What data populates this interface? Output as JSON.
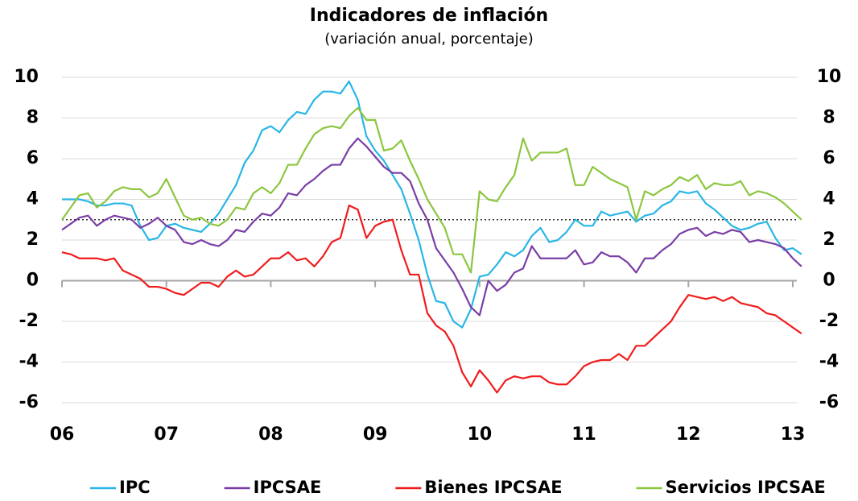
{
  "chart_data": {
    "type": "line",
    "title": "Indicadores de inflación",
    "subtitle": "(variación anual, porcentaje)",
    "categories": [
      "06",
      null,
      null,
      null,
      null,
      null,
      null,
      null,
      null,
      null,
      null,
      null,
      "07",
      null,
      null,
      null,
      null,
      null,
      null,
      null,
      null,
      null,
      null,
      null,
      "08",
      null,
      null,
      null,
      null,
      null,
      null,
      null,
      null,
      null,
      null,
      null,
      "09",
      null,
      null,
      null,
      null,
      null,
      null,
      null,
      null,
      null,
      null,
      null,
      "10",
      null,
      null,
      null,
      null,
      null,
      null,
      null,
      null,
      null,
      null,
      null,
      "11",
      null,
      null,
      null,
      null,
      null,
      null,
      null,
      null,
      null,
      null,
      null,
      "12",
      null,
      null,
      null,
      null,
      null,
      null,
      null,
      null,
      null,
      null,
      null,
      "13",
      null
    ],
    "series": [
      {
        "name": "IPC",
        "color": "#29b6e6",
        "values": [
          4.0,
          4.0,
          4.0,
          3.9,
          3.7,
          3.7,
          3.8,
          3.8,
          3.7,
          2.7,
          2.0,
          2.1,
          2.7,
          2.8,
          2.6,
          2.5,
          2.4,
          2.8,
          3.3,
          4.0,
          4.7,
          5.8,
          6.4,
          7.4,
          7.6,
          7.3,
          7.9,
          8.3,
          8.2,
          8.9,
          9.3,
          9.3,
          9.2,
          9.8,
          8.9,
          7.1,
          6.4,
          5.9,
          5.2,
          4.5,
          3.3,
          2.0,
          0.3,
          -1.0,
          -1.1,
          -2.0,
          -2.3,
          -1.4,
          0.2,
          0.3,
          0.8,
          1.4,
          1.2,
          1.5,
          2.2,
          2.6,
          1.9,
          2.0,
          2.4,
          3.0,
          2.7,
          2.7,
          3.4,
          3.2,
          3.3,
          3.4,
          2.9,
          3.2,
          3.3,
          3.7,
          3.9,
          4.4,
          4.3,
          4.4,
          3.8,
          3.5,
          3.1,
          2.7,
          2.5,
          2.6,
          2.8,
          2.9,
          2.1,
          1.5,
          1.6,
          1.3
        ]
      },
      {
        "name": "IPCSAE",
        "color": "#7a3ea6",
        "values": [
          2.5,
          2.8,
          3.1,
          3.2,
          2.7,
          3.0,
          3.2,
          3.1,
          3.0,
          2.6,
          2.8,
          3.1,
          2.7,
          2.5,
          1.9,
          1.8,
          2.0,
          1.8,
          1.7,
          2.0,
          2.5,
          2.4,
          2.9,
          3.3,
          3.2,
          3.6,
          4.3,
          4.2,
          4.7,
          5.0,
          5.4,
          5.7,
          5.7,
          6.5,
          7.0,
          6.6,
          6.1,
          5.6,
          5.3,
          5.3,
          4.9,
          3.8,
          3.0,
          1.6,
          1.0,
          0.4,
          -0.4,
          -1.3,
          -1.7,
          0.0,
          -0.5,
          -0.2,
          0.4,
          0.6,
          1.7,
          1.1,
          1.1,
          1.1,
          1.1,
          1.5,
          0.8,
          0.9,
          1.4,
          1.2,
          1.2,
          0.9,
          0.4,
          1.1,
          1.1,
          1.5,
          1.8,
          2.3,
          2.5,
          2.6,
          2.2,
          2.4,
          2.3,
          2.5,
          2.4,
          1.9,
          2.0,
          1.9,
          1.8,
          1.6,
          1.1,
          0.7
        ]
      },
      {
        "name": "Bienes IPCSAE",
        "color": "#f01c1c",
        "values": [
          1.4,
          1.3,
          1.1,
          1.1,
          1.1,
          1.0,
          1.1,
          0.5,
          0.3,
          0.1,
          -0.3,
          -0.3,
          -0.4,
          -0.6,
          -0.7,
          -0.4,
          -0.1,
          -0.1,
          -0.3,
          0.2,
          0.5,
          0.2,
          0.3,
          0.7,
          1.1,
          1.1,
          1.4,
          1.0,
          1.1,
          0.7,
          1.2,
          1.9,
          2.1,
          3.7,
          3.5,
          2.1,
          2.7,
          2.9,
          3.0,
          1.5,
          0.3,
          0.3,
          -1.6,
          -2.2,
          -2.5,
          -3.2,
          -4.5,
          -5.2,
          -4.4,
          -4.9,
          -5.5,
          -4.9,
          -4.7,
          -4.8,
          -4.7,
          -4.7,
          -5.0,
          -5.1,
          -5.1,
          -4.7,
          -4.2,
          -4.0,
          -3.9,
          -3.9,
          -3.6,
          -3.9,
          -3.2,
          -3.2,
          -2.8,
          -2.4,
          -2.0,
          -1.3,
          -0.7,
          -0.8,
          -0.9,
          -0.8,
          -1.0,
          -0.8,
          -1.1,
          -1.2,
          -1.3,
          -1.6,
          -1.7,
          -2.0,
          -2.3,
          -2.6
        ]
      },
      {
        "name": "Servicios IPCSAE",
        "color": "#8cc63f",
        "values": [
          3.0,
          3.6,
          4.2,
          4.3,
          3.6,
          3.9,
          4.4,
          4.6,
          4.5,
          4.5,
          4.1,
          4.3,
          5.0,
          4.1,
          3.2,
          3.0,
          3.1,
          2.8,
          2.7,
          3.0,
          3.6,
          3.5,
          4.3,
          4.6,
          4.3,
          4.8,
          5.7,
          5.7,
          6.5,
          7.2,
          7.5,
          7.6,
          7.5,
          8.1,
          8.5,
          7.9,
          7.9,
          6.4,
          6.5,
          6.9,
          5.9,
          5.0,
          4.0,
          3.3,
          2.6,
          1.3,
          1.3,
          0.4,
          4.4,
          4.0,
          3.9,
          4.6,
          5.2,
          7.0,
          5.9,
          6.3,
          6.3,
          6.3,
          6.5,
          4.7,
          4.7,
          5.6,
          5.3,
          5.0,
          4.8,
          4.6,
          3.0,
          4.4,
          4.2,
          4.5,
          4.7,
          5.1,
          4.9,
          5.2,
          4.5,
          4.8,
          4.7,
          4.7,
          4.9,
          4.2,
          4.4,
          4.3,
          4.1,
          3.8,
          3.4,
          3.0
        ]
      }
    ],
    "ylim": [
      -6,
      10
    ],
    "yticks": [
      -6,
      -4,
      -2,
      0,
      2,
      4,
      6,
      8,
      10
    ],
    "grid": true,
    "reference_line": 3,
    "legend": "bottom"
  }
}
